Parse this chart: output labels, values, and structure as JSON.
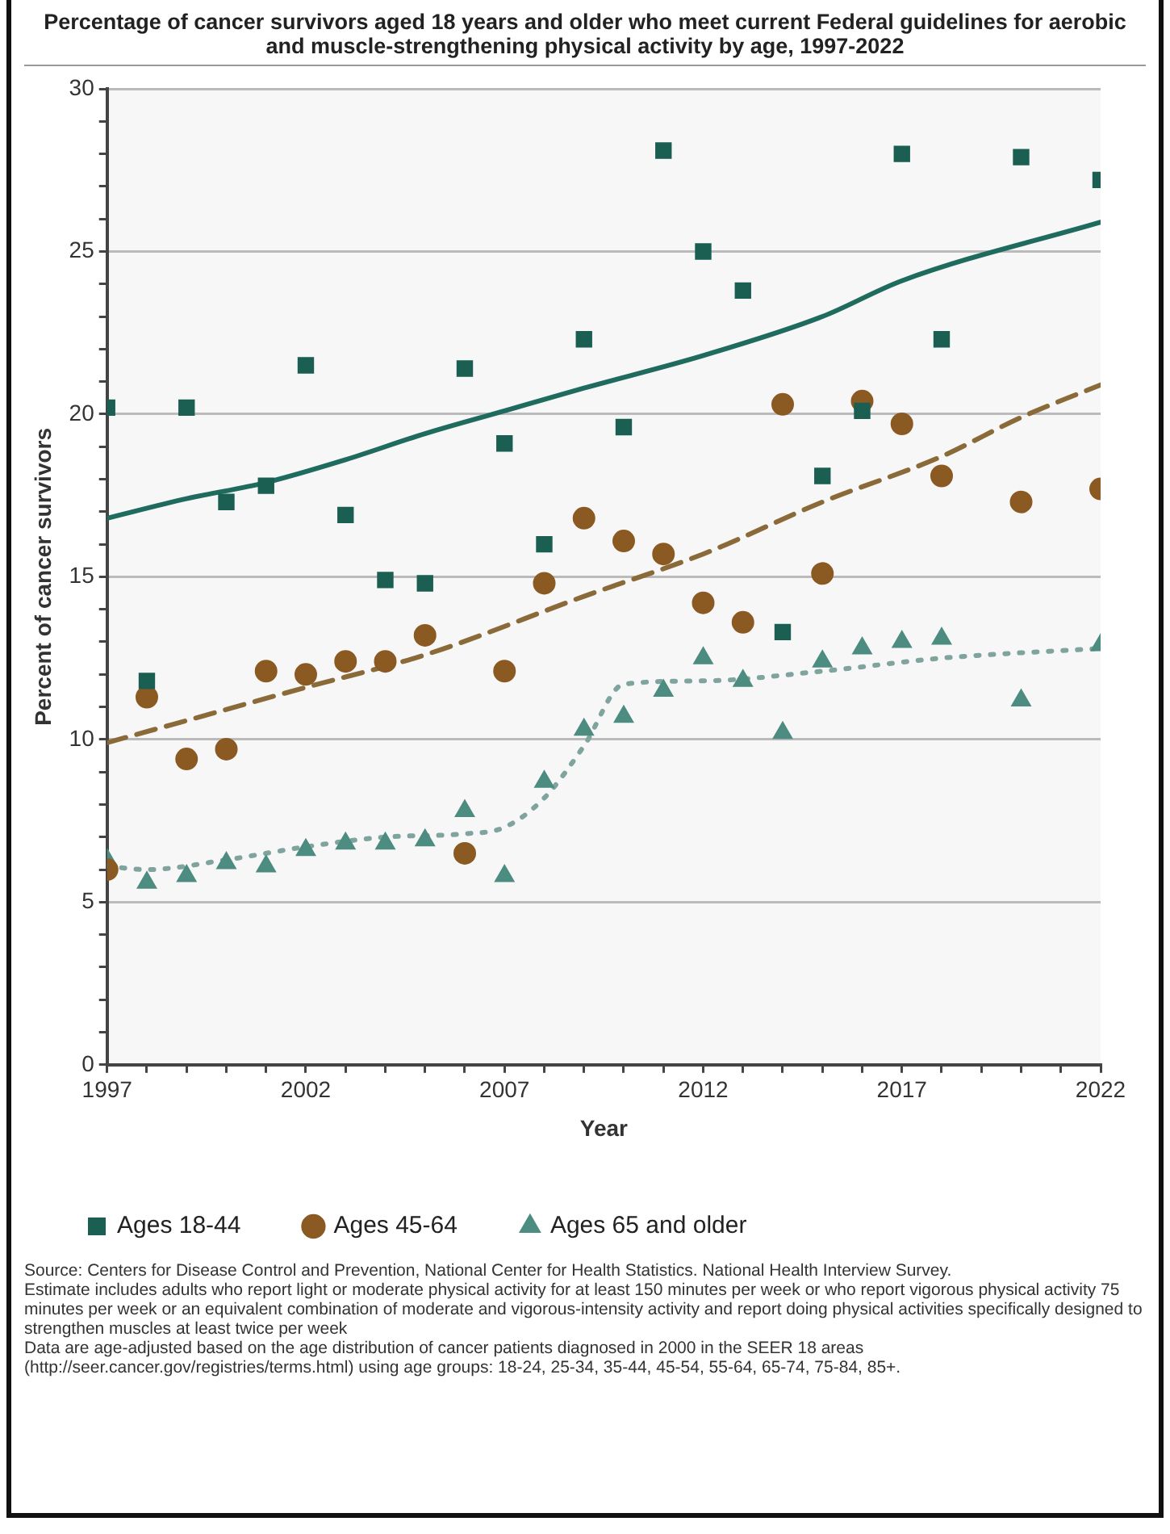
{
  "chart_data": {
    "type": "scatter",
    "title": "Percentage of cancer survivors aged 18 years and older who meet current Federal guidelines for aerobic and muscle-strengthening physical activity by age, 1997-2022",
    "xlabel": "Year",
    "ylabel": "Percent of cancer survivors",
    "x": [
      1997,
      1998,
      1999,
      2000,
      2001,
      2002,
      2003,
      2004,
      2005,
      2006,
      2007,
      2008,
      2009,
      2010,
      2011,
      2012,
      2013,
      2014,
      2015,
      2016,
      2017,
      2018,
      2020,
      2022
    ],
    "series": [
      {
        "name": "Ages 18-44",
        "marker": "square",
        "color": "#1b5e52",
        "values": [
          20.2,
          11.8,
          20.2,
          17.3,
          17.8,
          21.5,
          16.9,
          14.9,
          14.8,
          21.4,
          19.1,
          16.0,
          22.3,
          19.6,
          28.1,
          25.0,
          23.8,
          13.3,
          18.1,
          20.1,
          28.0,
          22.3,
          27.9,
          27.2
        ]
      },
      {
        "name": "Ages 45-64",
        "marker": "circle",
        "color": "#8a5a22",
        "values": [
          6.0,
          11.3,
          9.4,
          9.7,
          12.1,
          12.0,
          12.4,
          12.4,
          13.2,
          6.5,
          12.1,
          14.8,
          16.8,
          16.1,
          15.7,
          14.2,
          13.6,
          20.3,
          15.1,
          20.4,
          19.7,
          18.1,
          17.3,
          17.7
        ]
      },
      {
        "name": "Ages 65 and older",
        "marker": "triangle",
        "color": "#4d8c80",
        "values": [
          6.3,
          5.6,
          5.8,
          6.2,
          6.1,
          6.6,
          6.8,
          6.8,
          6.9,
          7.8,
          5.8,
          8.7,
          10.3,
          10.7,
          11.5,
          12.5,
          11.8,
          10.2,
          12.4,
          12.8,
          13.0,
          13.1,
          11.2,
          12.9
        ]
      },
      {
        "type": "line",
        "line_style": "solid",
        "color": "#1f6b5e",
        "x": [
          1997,
          1999,
          2001,
          2003,
          2005,
          2007,
          2009,
          2012,
          2015,
          2017,
          2022
        ],
        "values": [
          16.8,
          17.4,
          17.9,
          18.6,
          19.4,
          20.1,
          20.8,
          21.8,
          23.0,
          24.1,
          25.9
        ]
      },
      {
        "type": "line",
        "line_style": "dashed",
        "color": "#8b6a3a",
        "x": [
          1997,
          2002,
          2005,
          2009,
          2012,
          2015,
          2018,
          2020,
          2022
        ],
        "values": [
          9.9,
          11.6,
          12.6,
          14.4,
          15.7,
          17.3,
          18.7,
          19.9,
          20.9
        ]
      },
      {
        "type": "line",
        "line_style": "dotted",
        "color": "#7fa39d",
        "x": [
          1997,
          1998,
          2000,
          2002,
          2004,
          2006,
          2007,
          2008,
          2009,
          2010,
          2012,
          2015,
          2018,
          2022
        ],
        "values": [
          6.1,
          6.0,
          6.3,
          6.7,
          7.0,
          7.1,
          7.3,
          8.2,
          9.8,
          11.7,
          11.8,
          12.1,
          12.5,
          12.8
        ]
      }
    ],
    "xlim": [
      1997,
      2022
    ],
    "xticks": [
      1997,
      {
        "value": 1998,
        "label": null
      },
      {
        "value": 1999,
        "label": null
      },
      {
        "value": 2000,
        "label": null
      },
      {
        "value": 2001,
        "label": null
      },
      2002,
      {
        "value": 2003,
        "label": null
      },
      {
        "value": 2004,
        "label": null
      },
      {
        "value": 2005,
        "label": null
      },
      {
        "value": 2006,
        "label": null
      },
      2007,
      {
        "value": 2008,
        "label": null
      },
      {
        "value": 2009,
        "label": null
      },
      {
        "value": 2010,
        "label": null
      },
      {
        "value": 2011,
        "label": null
      },
      2012,
      {
        "value": 2013,
        "label": null
      },
      {
        "value": 2014,
        "label": null
      },
      {
        "value": 2015,
        "label": null
      },
      {
        "value": 2016,
        "label": null
      },
      2017,
      {
        "value": 2018,
        "label": null
      },
      {
        "value": 2019,
        "label": null
      },
      {
        "value": 2020,
        "label": null
      },
      {
        "value": 2021,
        "label": null
      },
      2022
    ],
    "ylim": [
      0,
      30
    ],
    "yticks": [
      0,
      {
        "value": 1,
        "label": null
      },
      {
        "value": 2,
        "label": null
      },
      {
        "value": 3,
        "label": null
      },
      {
        "value": 4,
        "label": null
      },
      5,
      {
        "value": 6,
        "label": null
      },
      {
        "value": 7,
        "label": null
      },
      {
        "value": 8,
        "label": null
      },
      {
        "value": 9,
        "label": null
      },
      10,
      {
        "value": 11,
        "label": null
      },
      {
        "value": 12,
        "label": null
      },
      {
        "value": 13,
        "label": null
      },
      {
        "value": 14,
        "label": null
      },
      15,
      {
        "value": 16,
        "label": null
      },
      {
        "value": 17,
        "label": null
      },
      {
        "value": 18,
        "label": null
      },
      {
        "value": 19,
        "label": null
      },
      20,
      {
        "value": 21,
        "label": null
      },
      {
        "value": 22,
        "label": null
      },
      {
        "value": 23,
        "label": null
      },
      {
        "value": 24,
        "label": null
      },
      25,
      {
        "value": 26,
        "label": null
      },
      {
        "value": 27,
        "label": null
      },
      {
        "value": 28,
        "label": null
      },
      {
        "value": 29,
        "label": null
      },
      30
    ],
    "grid": "y",
    "legend": "bottom",
    "annotations": [
      "Source: Centers for Disease Control and Prevention, National Center for Health Statistics. National Health Interview Survey.",
      "Estimate includes adults who report light or moderate physical activity for at least 150 minutes per week or who report vigorous physical activity 75 minutes per week or an equivalent combination of moderate and vigorous-intensity activity and report doing physical activities specifically designed to strengthen muscles at least twice per week",
      "Data are age-adjusted based on the age distribution of cancer patients diagnosed in 2000 in the SEER 18 areas (http://seer.cancer.gov/registries/terms.html) using age groups: 18-24, 25-34, 35-44, 45-54, 55-64, 65-74, 75-84, 85+."
    ]
  }
}
